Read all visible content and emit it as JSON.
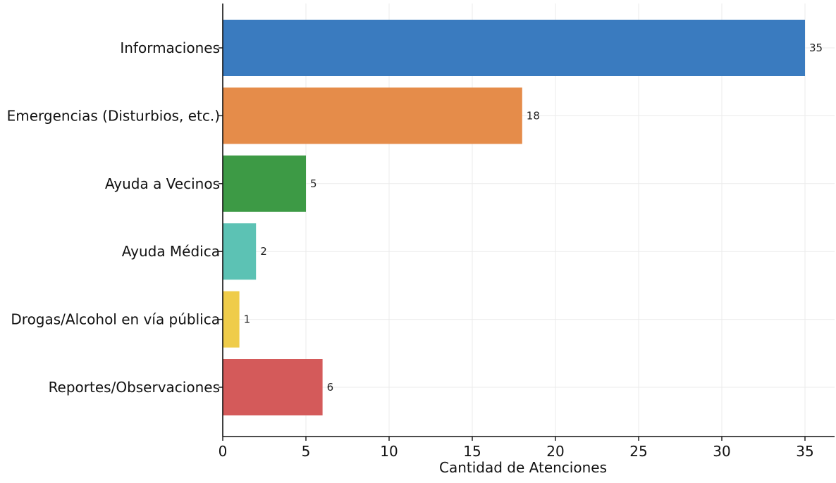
{
  "chart_data": {
    "type": "bar",
    "orientation": "horizontal",
    "title": "",
    "xlabel": "Cantidad de Atenciones",
    "ylabel": "",
    "xlim": [
      0,
      37
    ],
    "xticks": [
      0,
      5,
      10,
      15,
      20,
      25,
      30,
      35
    ],
    "grid": true,
    "categories": [
      "Informaciones",
      "Emergencias (Disturbios, etc.)",
      "Ayuda a Vecinos",
      "Ayuda Médica",
      "Drogas/Alcohol en vía pública",
      "Reportes/Observaciones"
    ],
    "values": [
      35,
      18,
      5,
      2,
      1,
      6
    ],
    "colors": [
      "#3a7bbf",
      "#e58c4a",
      "#3d9a45",
      "#5cc2b4",
      "#efcc4a",
      "#d45a5a"
    ]
  }
}
